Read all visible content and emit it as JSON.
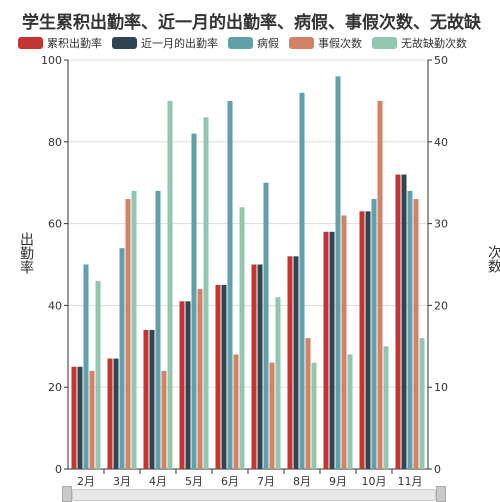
{
  "chart_data": {
    "type": "bar",
    "title": "学生累积出勤率、近一月的出勤率、病假、事假次数、无故缺",
    "categories": [
      "2月",
      "3月",
      "4月",
      "5月",
      "6月",
      "7月",
      "8月",
      "9月",
      "10月",
      "11月"
    ],
    "series": [
      {
        "name": "累积出勤率",
        "axis": "left",
        "color": "#c23531",
        "values": [
          25,
          27,
          34,
          41,
          45,
          50,
          52,
          58,
          63,
          72
        ]
      },
      {
        "name": "近一月的出勤率",
        "axis": "left",
        "color": "#2f4554",
        "values": [
          25,
          27,
          34,
          41,
          45,
          50,
          52,
          58,
          63,
          72
        ]
      },
      {
        "name": "病假",
        "axis": "right",
        "color": "#61a0a8",
        "values": [
          25,
          27,
          34,
          41,
          45,
          35,
          46,
          48,
          33,
          34
        ]
      },
      {
        "name": "事假次数",
        "axis": "right",
        "color": "#d48265",
        "values": [
          12,
          33,
          12,
          22,
          14,
          13,
          16,
          31,
          45,
          33
        ]
      },
      {
        "name": "无故缺勤次数",
        "axis": "right",
        "color": "#91c7ae",
        "values": [
          23,
          34,
          45,
          43,
          32,
          21,
          13,
          14,
          15,
          16
        ]
      }
    ],
    "ylabel": "出勤率",
    "ylabel_right": "次数",
    "ylim": [
      0,
      100
    ],
    "ylim_right": [
      0,
      50
    ],
    "yticks": [
      "0",
      "20",
      "40",
      "60",
      "80",
      "100"
    ],
    "yticks_right": [
      "0",
      "10",
      "20",
      "30",
      "40",
      "50"
    ],
    "grid": true,
    "legend_position": "top-left"
  }
}
